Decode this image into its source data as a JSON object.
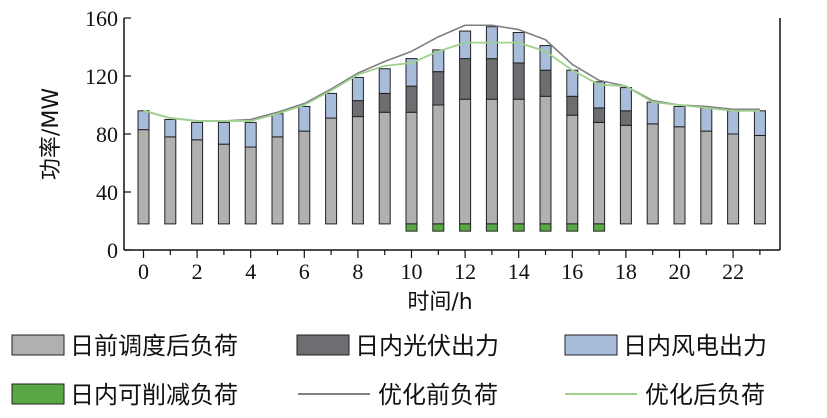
{
  "chart_data": {
    "type": "bar",
    "xlabel": "时间/h",
    "ylabel": "功率/MW",
    "ylim": [
      0,
      160
    ],
    "yticks": [
      0,
      40,
      80,
      120,
      160
    ],
    "xticks": [
      0,
      2,
      4,
      6,
      8,
      10,
      12,
      14,
      16,
      18,
      20,
      22
    ],
    "x": [
      0,
      1,
      2,
      3,
      4,
      5,
      6,
      7,
      8,
      9,
      10,
      11,
      12,
      13,
      14,
      15,
      16,
      17,
      18,
      19,
      20,
      21,
      22,
      23
    ],
    "bar_base": 18,
    "series": [
      {
        "name": "日前调度后负荷",
        "color": "#b0b0b0",
        "values": [
          83,
          78,
          76,
          73,
          71,
          78,
          82,
          91,
          92,
          95,
          95,
          100,
          104,
          104,
          104,
          106,
          93,
          88,
          86,
          87,
          85,
          82,
          80,
          79
        ]
      },
      {
        "name": "日内光伏出力",
        "color": "#6e6e72",
        "values": [
          0,
          0,
          0,
          0,
          0,
          0,
          0,
          0,
          11,
          13,
          18,
          23,
          28,
          28,
          25,
          18,
          13,
          10,
          10,
          0,
          0,
          0,
          0,
          0
        ]
      },
      {
        "name": "日内风电出力",
        "color": "#a8bcdc",
        "values": [
          13,
          12,
          12,
          15,
          17,
          16,
          17,
          17,
          16,
          17,
          19,
          15,
          19,
          22,
          21,
          17,
          18,
          18,
          16,
          15,
          14,
          16,
          16,
          17
        ]
      },
      {
        "name": "日内可削减负荷",
        "color": "#5aa845",
        "values": [
          0,
          0,
          0,
          0,
          0,
          0,
          0,
          0,
          0,
          0,
          5,
          5,
          5,
          5,
          5,
          5,
          5,
          5,
          0,
          0,
          0,
          0,
          0,
          0
        ]
      },
      {
        "name": "优化前负荷",
        "color": "#7f7f84",
        "values": [
          96,
          91,
          89,
          89,
          90,
          95,
          101,
          111,
          122,
          130,
          137,
          147,
          155,
          155,
          152,
          145,
          128,
          117,
          113,
          103,
          100,
          99,
          97,
          97
        ]
      },
      {
        "name": "优化后负荷",
        "color": "#9fd18d",
        "values": [
          96,
          91,
          89,
          89,
          89,
          94,
          100,
          110,
          121,
          127,
          129,
          137,
          143,
          143,
          143,
          137,
          124,
          114,
          113,
          102,
          100,
          98,
          96,
          96
        ]
      }
    ],
    "legend": [
      "日前调度后负荷",
      "日内光伏出力",
      "日内风电出力",
      "日内可削减负荷",
      "优化前负荷",
      "优化后负荷"
    ],
    "legend_position": "bottom"
  }
}
